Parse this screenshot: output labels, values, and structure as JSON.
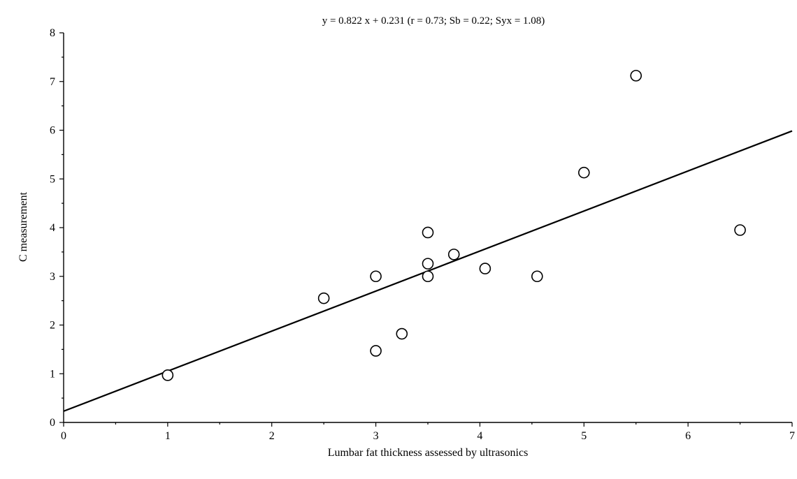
{
  "chart_data": {
    "type": "scatter",
    "title": "y = 0.822 x + 0.231 (r = 0.73; Sb = 0.22; Syx = 1.08)",
    "xlabel": "Lumbar fat thickness assessed by ultrasonics",
    "ylabel": "C measurement",
    "xlim": [
      0,
      7
    ],
    "ylim": [
      0,
      8
    ],
    "x_ticks": [
      0,
      1,
      2,
      3,
      4,
      5,
      6,
      7
    ],
    "y_ticks": [
      0,
      1,
      2,
      3,
      4,
      5,
      6,
      7,
      8
    ],
    "grid": false,
    "legend": "none",
    "series": [
      {
        "points": [
          [
            1.0,
            0.97
          ],
          [
            2.5,
            2.55
          ],
          [
            3.0,
            1.47
          ],
          [
            3.0,
            3.0
          ],
          [
            3.25,
            1.82
          ],
          [
            3.5,
            3.0
          ],
          [
            3.5,
            3.26
          ],
          [
            3.5,
            3.9
          ],
          [
            3.75,
            3.45
          ],
          [
            4.05,
            3.16
          ],
          [
            4.55,
            3.0
          ],
          [
            5.0,
            5.13
          ],
          [
            5.5,
            7.12
          ],
          [
            6.5,
            3.95
          ]
        ]
      }
    ],
    "regression_line": {
      "slope": 0.822,
      "intercept": 0.231
    }
  }
}
